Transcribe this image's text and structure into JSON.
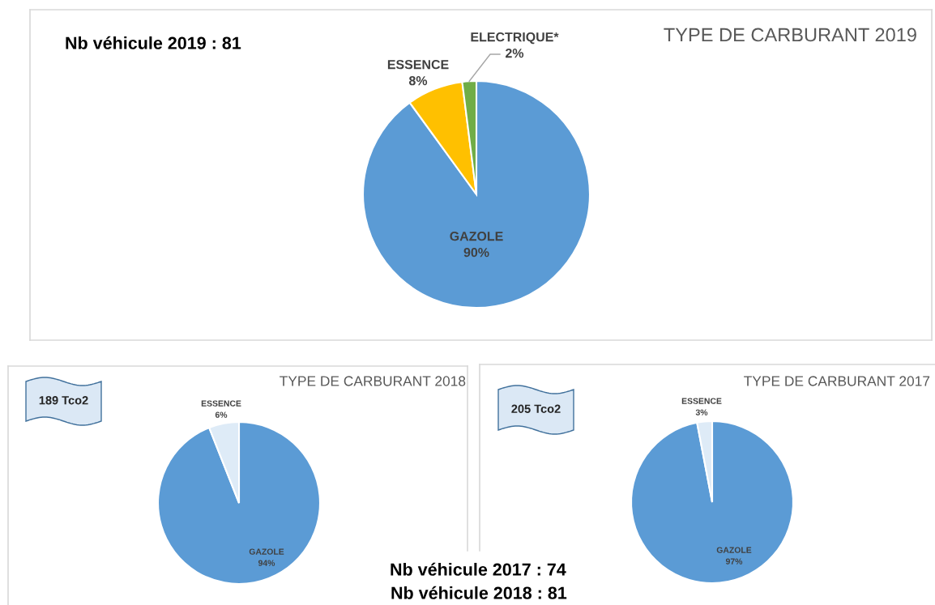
{
  "chart_data": [
    {
      "type": "pie",
      "title": "TYPE DE CARBURANT 2019",
      "categories": [
        "GAZOLE",
        "ESSENCE",
        "ELECTRIQUE*"
      ],
      "values": [
        90,
        8,
        2
      ],
      "value_labels": [
        "90%",
        "8%",
        "2%"
      ],
      "colors": [
        "#5b9bd5",
        "#ffc000",
        "#70ad47"
      ],
      "annotations": [
        "Nb véhicule 2019 : 81"
      ]
    },
    {
      "type": "pie",
      "title": "TYPE DE CARBURANT 2018",
      "categories": [
        "GAZOLE",
        "ESSENCE"
      ],
      "values": [
        94,
        6
      ],
      "value_labels": [
        "94%",
        "6%"
      ],
      "colors": [
        "#5b9bd5",
        "#deebf7"
      ],
      "annotations": [
        "189 Tco2",
        "Nb véhicule 2018 : 81"
      ]
    },
    {
      "type": "pie",
      "title": "TYPE DE CARBURANT 2017",
      "categories": [
        "GAZOLE",
        "ESSENCE"
      ],
      "values": [
        97,
        3
      ],
      "value_labels": [
        "97%",
        "3%"
      ],
      "colors": [
        "#5b9bd5",
        "#deebf7"
      ],
      "annotations": [
        "205 Tco2",
        "Nb véhicule 2017 : 74"
      ]
    }
  ]
}
